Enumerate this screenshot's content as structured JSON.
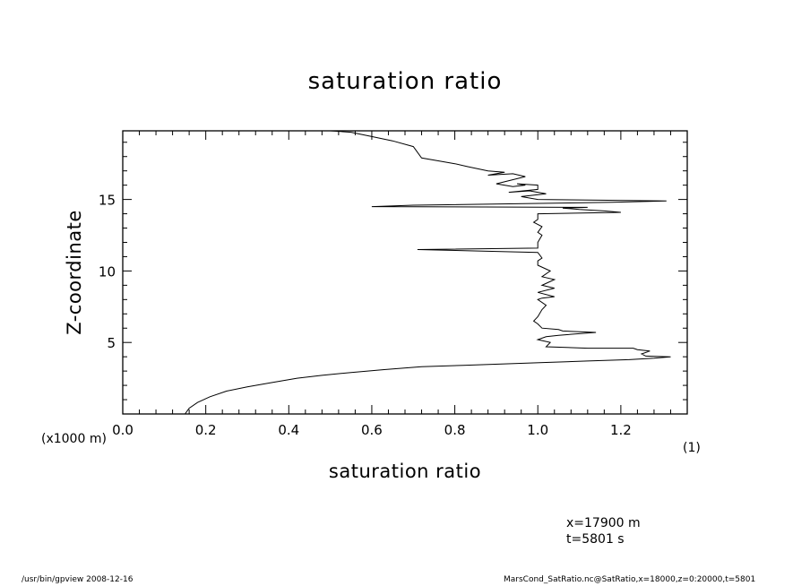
{
  "chart_data": {
    "type": "line",
    "title": "saturation ratio",
    "xlabel": "saturation ratio",
    "ylabel": "Z-coordinate",
    "x_unit_label": "(1)",
    "y_unit_label": "(x1000 m)",
    "xlim": [
      0.0,
      1.36
    ],
    "ylim": [
      0.0,
      19.8
    ],
    "x_ticks": [
      0.0,
      0.2,
      0.4,
      0.6,
      0.8,
      1.0,
      1.2
    ],
    "x_tick_labels": [
      "0.0",
      "0.2",
      "0.4",
      "0.6",
      "0.8",
      "1.0",
      "1.2"
    ],
    "y_ticks": [
      5,
      10,
      15
    ],
    "y_tick_labels": [
      "5",
      "10",
      "15"
    ],
    "grid": false,
    "series": [
      {
        "x": [
          0.15,
          0.16,
          0.18,
          0.21,
          0.25,
          0.3,
          0.36,
          0.42,
          0.48,
          0.55,
          0.63,
          0.72,
          0.82,
          0.92,
          1.02,
          1.12,
          1.22,
          1.28,
          1.32,
          1.26,
          1.25,
          1.27,
          1.24,
          1.23,
          1.12,
          1.02,
          1.03,
          1.0,
          1.02,
          1.05,
          1.14,
          1.06,
          1.05,
          1.01,
          1.0,
          0.99,
          1.0,
          1.01,
          1.02,
          1.0,
          1.01,
          1.04,
          1.0,
          1.04,
          1.01,
          1.04,
          1.01,
          1.03,
          1.0,
          1.0,
          1.01,
          1.0,
          0.71,
          1.0,
          1.0,
          1.01,
          1.0,
          1.01,
          0.99,
          1.0,
          1.0,
          1.2,
          1.16,
          1.1,
          1.06,
          1.12,
          0.6,
          0.7,
          1.18,
          1.31,
          1.0,
          0.96,
          1.02,
          0.98,
          0.93,
          1.0,
          1.0,
          0.95,
          0.97,
          0.94,
          0.9,
          0.97,
          0.94,
          0.88,
          0.92,
          0.88,
          0.83,
          0.8,
          0.76,
          0.72,
          0.71,
          0.7,
          0.65,
          0.6,
          0.55,
          0.5
        ],
        "y": [
          0.0,
          0.4,
          0.8,
          1.2,
          1.6,
          1.9,
          2.2,
          2.5,
          2.7,
          2.9,
          3.1,
          3.3,
          3.4,
          3.5,
          3.6,
          3.7,
          3.8,
          3.9,
          4.0,
          4.05,
          4.2,
          4.4,
          4.5,
          4.6,
          4.6,
          4.7,
          5.0,
          5.2,
          5.4,
          5.5,
          5.7,
          5.8,
          5.9,
          6.0,
          6.3,
          6.5,
          6.8,
          7.3,
          7.6,
          8.0,
          8.1,
          8.2,
          8.5,
          8.8,
          9.0,
          9.4,
          9.6,
          10.0,
          10.4,
          10.7,
          10.9,
          11.3,
          11.5,
          11.6,
          12.0,
          12.5,
          12.7,
          13.1,
          13.4,
          13.6,
          14.0,
          14.1,
          14.2,
          14.3,
          14.4,
          14.45,
          14.5,
          14.6,
          14.8,
          14.9,
          15.0,
          15.2,
          15.4,
          15.6,
          15.5,
          15.7,
          16.0,
          16.1,
          16.0,
          15.9,
          16.1,
          16.6,
          16.8,
          16.7,
          16.9,
          17.0,
          17.3,
          17.5,
          17.7,
          17.9,
          18.3,
          18.7,
          19.1,
          19.4,
          19.7,
          19.8
        ]
      }
    ]
  },
  "info": {
    "position": "x=17900  m",
    "time": "t=5801  s"
  },
  "footer": {
    "left": "/usr/bin/gpview   2008-12-16",
    "right": "MarsCond_SatRatio.nc@SatRatio,x=18000,z=0:20000,t=5801"
  }
}
